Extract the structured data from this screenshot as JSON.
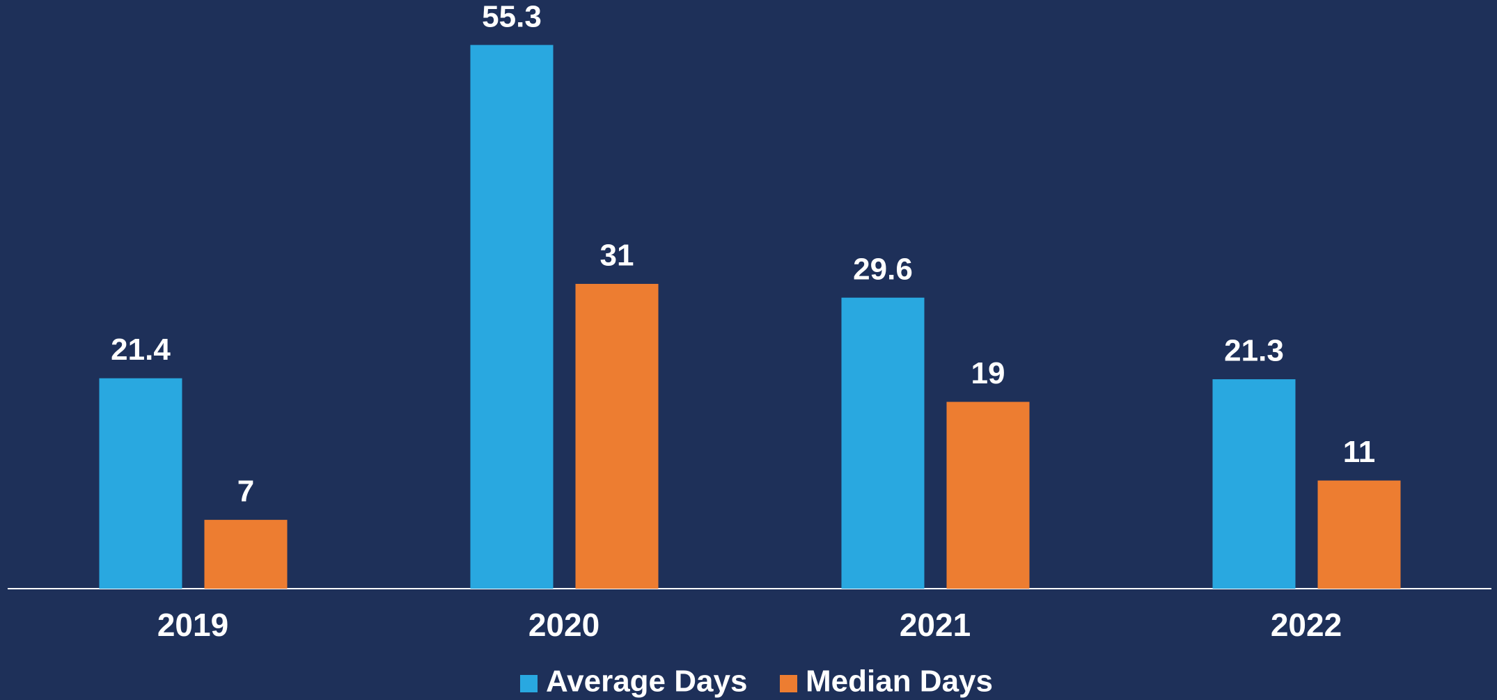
{
  "chart_data": {
    "type": "bar",
    "categories": [
      "2019",
      "2020",
      "2021",
      "2022"
    ],
    "series": [
      {
        "name": "Average Days",
        "color": "#29a8e0",
        "values": [
          21.4,
          55.3,
          29.6,
          21.3
        ]
      },
      {
        "name": "Median Days",
        "color": "#ed7d31",
        "values": [
          7,
          31,
          19,
          11
        ]
      }
    ],
    "legend": "bottom"
  }
}
